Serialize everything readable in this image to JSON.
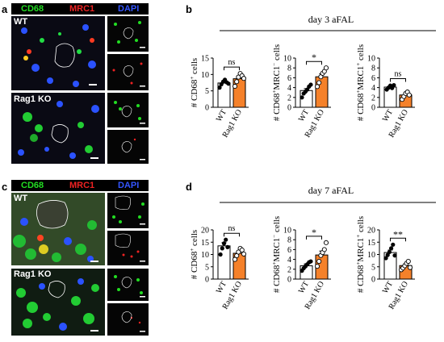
{
  "figure": {
    "panel_a": {
      "letter": "a",
      "channels": [
        {
          "label": "CD68",
          "color": "#22dd22"
        },
        {
          "label": "MRC1",
          "color": "#ee2222"
        },
        {
          "label": "DAPI",
          "color": "#3355ff"
        }
      ],
      "rows": [
        "WT",
        "Rag1 KO"
      ]
    },
    "panel_b": {
      "letter": "b",
      "title": "day 3 aFAL"
    },
    "panel_c": {
      "letter": "c",
      "channels": [
        {
          "label": "CD68",
          "color": "#22dd22"
        },
        {
          "label": "MRC1",
          "color": "#ee2222"
        },
        {
          "label": "DAPI",
          "color": "#3355ff"
        }
      ],
      "rows": [
        "WT",
        "Rag1 KO"
      ]
    },
    "panel_d": {
      "letter": "d",
      "title": "day 7 aFAL"
    }
  },
  "chart_data": [
    {
      "id": "b1",
      "type": "bar",
      "timepoint": "day 3 aFAL",
      "categories": [
        "WT",
        "Rag1 KO"
      ],
      "values": [
        7.4,
        8.7
      ],
      "sem": [
        0.6,
        0.8
      ],
      "points": [
        [
          6.0,
          7.0,
          7.8,
          8.4,
          7.6,
          7.2
        ],
        [
          6.4,
          7.8,
          9.2,
          10.3,
          9.6,
          8.8
        ]
      ],
      "bar_colors": [
        "#ffffff",
        "#f5812a"
      ],
      "ylabel": "# CD68+ cells",
      "ylim": [
        0,
        15
      ],
      "yticks": [
        0,
        5,
        10,
        15
      ],
      "significance": "ns"
    },
    {
      "id": "b2",
      "type": "bar",
      "timepoint": "day 3 aFAL",
      "categories": [
        "WT",
        "Rag1 KO"
      ],
      "values": [
        3.4,
        6.2
      ],
      "sem": [
        0.4,
        0.6
      ],
      "points": [
        [
          2.0,
          2.8,
          3.2,
          3.6,
          4.2,
          4.6
        ],
        [
          4.2,
          5.0,
          6.2,
          6.9,
          7.3,
          8.0
        ]
      ],
      "bar_colors": [
        "#ffffff",
        "#f5812a"
      ],
      "ylabel": "# CD68+MRC1- cells",
      "ylim": [
        0,
        10
      ],
      "yticks": [
        0,
        2,
        4,
        6,
        8,
        10
      ],
      "significance": "*"
    },
    {
      "id": "b3",
      "type": "bar",
      "timepoint": "day 3 aFAL",
      "categories": [
        "WT",
        "Rag1 KO"
      ],
      "values": [
        4.1,
        2.5
      ],
      "sem": [
        0.2,
        0.3
      ],
      "points": [
        [
          3.6,
          4.0,
          4.4,
          3.9,
          4.5
        ],
        [
          1.6,
          2.2,
          2.8,
          3.1,
          2.5
        ]
      ],
      "bar_colors": [
        "#ffffff",
        "#f5812a"
      ],
      "ylabel": "# CD68+MRC1+ cells",
      "ylim": [
        0,
        10
      ],
      "yticks": [
        0,
        2,
        4,
        6,
        8,
        10
      ],
      "significance": "ns"
    },
    {
      "id": "d1",
      "type": "bar",
      "timepoint": "day 7 aFAL",
      "categories": [
        "WT",
        "Rag1 KO"
      ],
      "values": [
        13.5,
        10.5
      ],
      "sem": [
        1.3,
        0.9
      ],
      "points": [
        [
          10.0,
          12.5,
          14.5,
          16.0,
          13.0
        ],
        [
          8.0,
          9.5,
          11.0,
          12.5,
          11.8,
          10.2
        ]
      ],
      "bar_colors": [
        "#ffffff",
        "#f5812a"
      ],
      "ylabel": "# CD68+ cells",
      "ylim": [
        0,
        20
      ],
      "yticks": [
        0,
        5,
        10,
        15,
        20
      ],
      "significance": "ns"
    },
    {
      "id": "d2",
      "type": "bar",
      "timepoint": "day 7 aFAL",
      "categories": [
        "WT",
        "Rag1 KO"
      ],
      "values": [
        2.7,
        4.9
      ],
      "sem": [
        0.4,
        0.8
      ],
      "points": [
        [
          1.7,
          2.2,
          2.6,
          3.0,
          3.4,
          3.6
        ],
        [
          2.6,
          3.6,
          4.8,
          5.4,
          6.0,
          7.4
        ]
      ],
      "bar_colors": [
        "#ffffff",
        "#f5812a"
      ],
      "ylabel": "# CD68+MRC1- cells",
      "ylim": [
        0,
        10
      ],
      "yticks": [
        0,
        2,
        4,
        6,
        8,
        10
      ],
      "significance": "*"
    },
    {
      "id": "d3",
      "type": "bar",
      "timepoint": "day 7 aFAL",
      "categories": [
        "WT",
        "Rag1 KO"
      ],
      "values": [
        10.8,
        5.5
      ],
      "sem": [
        1.0,
        0.7
      ],
      "points": [
        [
          8.5,
          9.8,
          11.0,
          12.5,
          14.0,
          9.6
        ],
        [
          3.8,
          4.5,
          5.4,
          6.4,
          7.2,
          4.7
        ]
      ],
      "bar_colors": [
        "#ffffff",
        "#f5812a"
      ],
      "ylabel": "# CD68+MRC1+ cells",
      "ylim": [
        0,
        20
      ],
      "yticks": [
        0,
        5,
        10,
        15,
        20
      ],
      "significance": "**"
    }
  ]
}
